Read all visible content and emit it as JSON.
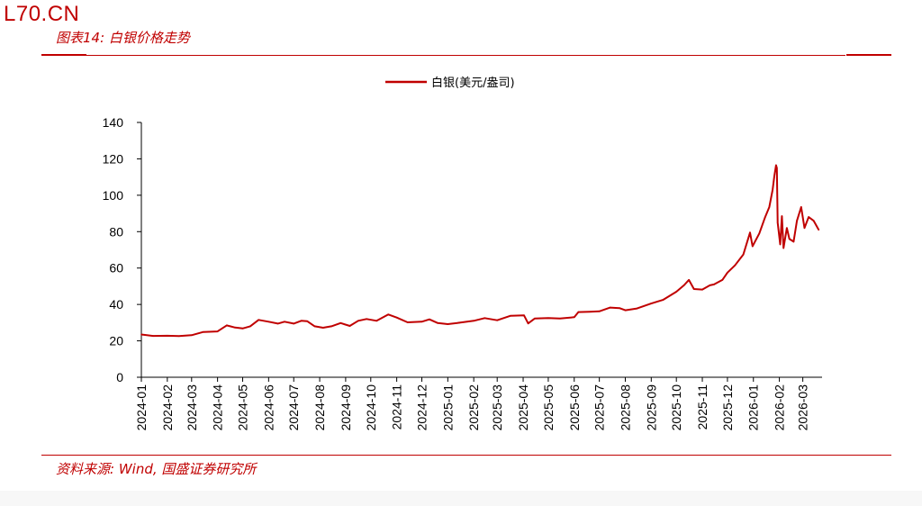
{
  "watermark": "L70.CN",
  "figure": {
    "title": "图表14:  白银价格走势",
    "source": "资料来源:  Wind,  国盛证券研究所"
  },
  "colors": {
    "accent": "#c00000",
    "series": "#c00000"
  },
  "chart_data": {
    "type": "line",
    "title": "",
    "xlabel": "",
    "ylabel": "",
    "ylim": [
      0,
      140
    ],
    "yticks": [
      0,
      20,
      40,
      60,
      80,
      100,
      120,
      140
    ],
    "xlim": [
      "2024-01-01",
      "2026-03-24"
    ],
    "xticks": [
      "2024-01",
      "2024-02",
      "2024-03",
      "2024-04",
      "2024-05",
      "2024-06",
      "2024-07",
      "2024-08",
      "2024-09",
      "2024-10",
      "2024-11",
      "2024-12",
      "2025-01",
      "2025-02",
      "2025-03",
      "2025-04",
      "2025-05",
      "2025-06",
      "2025-07",
      "2025-08",
      "2025-09",
      "2025-10",
      "2025-11",
      "2025-12",
      "2026-01",
      "2026-02",
      "2026-03"
    ],
    "grid": false,
    "legend": {
      "position": "top-center",
      "entries": [
        "白银(美元/盎司)"
      ]
    },
    "series": [
      {
        "name": "白银(美元/盎司)",
        "color": "#c00000",
        "points": [
          [
            "2024-01-01",
            23.5
          ],
          [
            "2024-01-15",
            22.7
          ],
          [
            "2024-02-01",
            22.8
          ],
          [
            "2024-02-15",
            22.6
          ],
          [
            "2024-03-01",
            23.1
          ],
          [
            "2024-03-15",
            24.9
          ],
          [
            "2024-04-01",
            25.2
          ],
          [
            "2024-04-12",
            28.5
          ],
          [
            "2024-04-22",
            27.3
          ],
          [
            "2024-05-01",
            26.8
          ],
          [
            "2024-05-10",
            28.0
          ],
          [
            "2024-05-20",
            31.5
          ],
          [
            "2024-06-01",
            30.5
          ],
          [
            "2024-06-12",
            29.5
          ],
          [
            "2024-06-20",
            30.5
          ],
          [
            "2024-07-01",
            29.5
          ],
          [
            "2024-07-10",
            31.0
          ],
          [
            "2024-07-17",
            30.8
          ],
          [
            "2024-07-26",
            28.0
          ],
          [
            "2024-08-05",
            27.2
          ],
          [
            "2024-08-15",
            28.0
          ],
          [
            "2024-08-26",
            29.8
          ],
          [
            "2024-09-06",
            28.2
          ],
          [
            "2024-09-16",
            31.0
          ],
          [
            "2024-09-26",
            32.0
          ],
          [
            "2024-10-08",
            31.0
          ],
          [
            "2024-10-22",
            34.5
          ],
          [
            "2024-11-01",
            32.8
          ],
          [
            "2024-11-14",
            30.2
          ],
          [
            "2024-12-01",
            30.5
          ],
          [
            "2024-12-10",
            31.8
          ],
          [
            "2024-12-20",
            29.8
          ],
          [
            "2025-01-01",
            29.2
          ],
          [
            "2025-01-15",
            30.0
          ],
          [
            "2025-02-01",
            31.0
          ],
          [
            "2025-02-14",
            32.5
          ],
          [
            "2025-03-01",
            31.3
          ],
          [
            "2025-03-17",
            33.8
          ],
          [
            "2025-04-02",
            34.0
          ],
          [
            "2025-04-07",
            29.6
          ],
          [
            "2025-04-15",
            32.3
          ],
          [
            "2025-05-01",
            32.5
          ],
          [
            "2025-05-15",
            32.3
          ],
          [
            "2025-06-01",
            33.0
          ],
          [
            "2025-06-06",
            35.8
          ],
          [
            "2025-06-20",
            36.0
          ],
          [
            "2025-07-01",
            36.2
          ],
          [
            "2025-07-14",
            38.3
          ],
          [
            "2025-07-25",
            38.0
          ],
          [
            "2025-08-01",
            36.8
          ],
          [
            "2025-08-15",
            37.8
          ],
          [
            "2025-09-01",
            40.5
          ],
          [
            "2025-09-15",
            42.5
          ],
          [
            "2025-10-01",
            47.0
          ],
          [
            "2025-10-10",
            50.5
          ],
          [
            "2025-10-16",
            53.5
          ],
          [
            "2025-10-22",
            48.5
          ],
          [
            "2025-11-01",
            48.2
          ],
          [
            "2025-11-10",
            50.5
          ],
          [
            "2025-11-15",
            51.0
          ],
          [
            "2025-11-25",
            53.5
          ],
          [
            "2025-12-01",
            57.5
          ],
          [
            "2025-12-10",
            61.5
          ],
          [
            "2025-12-20",
            67.5
          ],
          [
            "2025-12-28",
            79.5
          ],
          [
            "2025-12-31",
            72.0
          ],
          [
            "2026-01-08",
            79.0
          ],
          [
            "2026-01-15",
            88.0
          ],
          [
            "2026-01-20",
            93.5
          ],
          [
            "2026-01-24",
            103.0
          ],
          [
            "2026-01-26",
            110.5
          ],
          [
            "2026-01-28",
            116.5
          ],
          [
            "2026-01-29",
            115.0
          ],
          [
            "2026-01-30",
            85.0
          ],
          [
            "2026-02-02",
            73.0
          ],
          [
            "2026-02-04",
            88.5
          ],
          [
            "2026-02-06",
            71.0
          ],
          [
            "2026-02-10",
            82.0
          ],
          [
            "2026-02-13",
            76.0
          ],
          [
            "2026-02-18",
            74.5
          ],
          [
            "2026-02-22",
            86.0
          ],
          [
            "2026-02-27",
            93.5
          ],
          [
            "2026-03-03",
            82.0
          ],
          [
            "2026-03-08",
            88.0
          ],
          [
            "2026-03-14",
            86.0
          ],
          [
            "2026-03-17",
            83.5
          ],
          [
            "2026-03-20",
            81.0
          ]
        ]
      }
    ]
  }
}
